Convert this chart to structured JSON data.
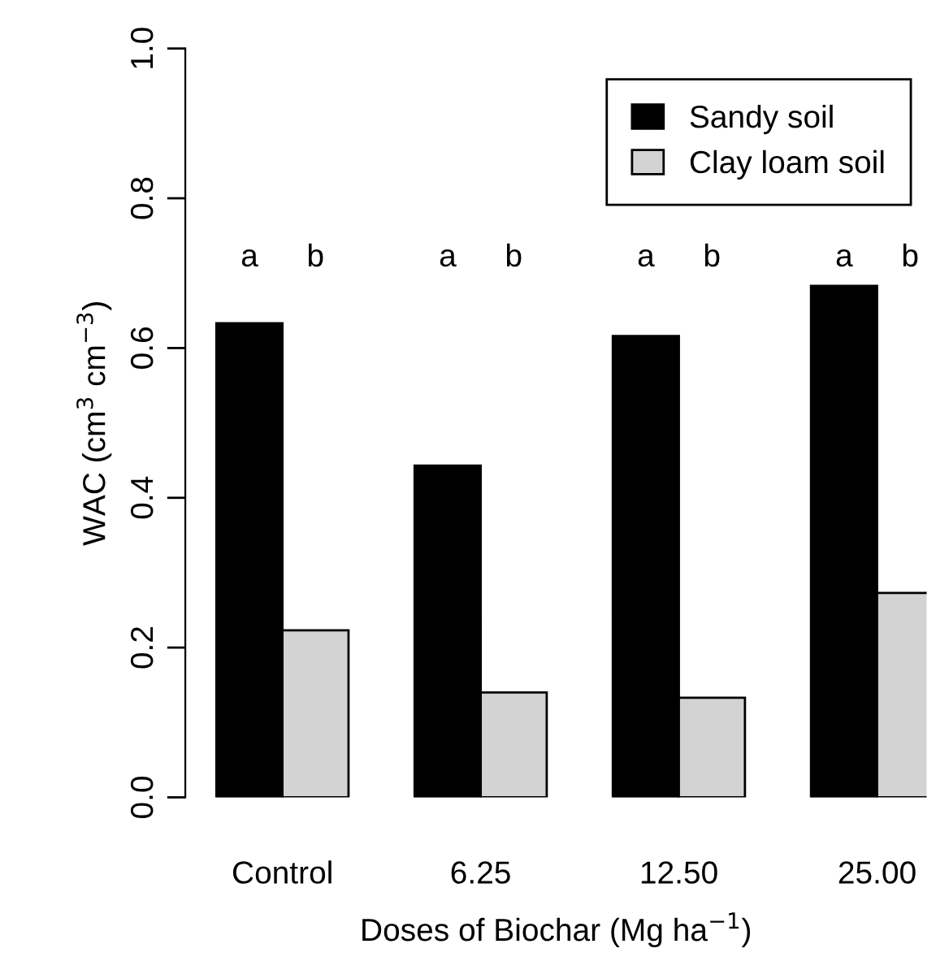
{
  "chart_data": {
    "type": "bar",
    "xlabel": "Doses of Biochar (Mg ha$^{−1}$)",
    "ylabel": "WAC (cm$^{3}$ cm$^{−3}$)",
    "categories": [
      "Control",
      "6.25",
      "12.50",
      "25.00"
    ],
    "series": [
      {
        "name": "Sandy soil",
        "color": "#000000",
        "values": [
          0.633,
          0.443,
          0.616,
          0.683
        ]
      },
      {
        "name": "Clay loam soil",
        "color": "#d3d3d3",
        "values": [
          0.223,
          0.14,
          0.133,
          0.273
        ]
      }
    ],
    "ylim": [
      0,
      1
    ],
    "yticks": [
      {
        "value": 0,
        "label": "0.0"
      },
      0.2,
      0.4,
      0.6,
      0.8,
      {
        "value": 1,
        "label": "1.0"
      }
    ],
    "grid": false,
    "legend": "top right",
    "annotations": [
      "a",
      "b",
      "a",
      "b",
      "a",
      "b",
      "a",
      "b"
    ]
  }
}
